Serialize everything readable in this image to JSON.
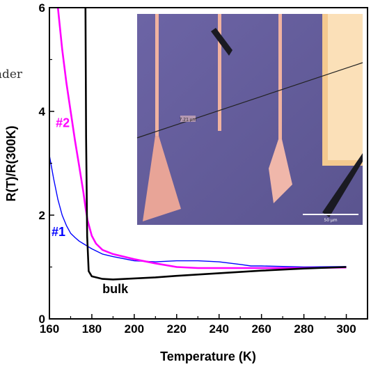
{
  "chart_data": {
    "type": "line",
    "xlabel": "Temperature (K)",
    "ylabel": "R(T)/R(300K)",
    "xlim": [
      160,
      310
    ],
    "ylim": [
      0,
      6
    ],
    "xticks": [
      160,
      180,
      200,
      220,
      240,
      260,
      280,
      300
    ],
    "yticks": [
      0,
      2,
      4,
      6
    ],
    "grid": false,
    "series": [
      {
        "name": "bulk",
        "color": "#000000",
        "x": [
          177,
          177.3,
          177.8,
          178.5,
          180,
          185,
          190,
          200,
          210,
          220,
          240,
          260,
          280,
          300
        ],
        "y": [
          6.0,
          3.5,
          1.6,
          0.92,
          0.82,
          0.77,
          0.76,
          0.78,
          0.8,
          0.83,
          0.88,
          0.93,
          0.97,
          1.0
        ]
      },
      {
        "name": "#2",
        "color": "#ff00ff",
        "x": [
          164,
          166,
          168,
          170,
          172,
          174,
          176,
          177,
          178,
          180,
          182,
          185,
          190,
          200,
          210,
          220,
          230,
          240,
          260,
          280,
          300
        ],
        "y": [
          6.0,
          5.2,
          4.55,
          4.0,
          3.45,
          2.95,
          2.45,
          2.15,
          1.9,
          1.6,
          1.45,
          1.33,
          1.25,
          1.15,
          1.07,
          1.0,
          0.98,
          0.98,
          0.98,
          0.98,
          0.99
        ]
      },
      {
        "name": "#1",
        "color": "#0000ff",
        "x": [
          160,
          162,
          164,
          166,
          168,
          170,
          172,
          174,
          176,
          178,
          180,
          185,
          190,
          200,
          210,
          220,
          230,
          240,
          250,
          255,
          260,
          280,
          300
        ],
        "y": [
          3.15,
          2.7,
          2.3,
          2.0,
          1.8,
          1.65,
          1.57,
          1.5,
          1.45,
          1.4,
          1.35,
          1.25,
          1.2,
          1.12,
          1.1,
          1.12,
          1.12,
          1.1,
          1.05,
          1.02,
          1.02,
          1.0,
          1.01
        ]
      }
    ],
    "annotations": [
      {
        "text": "#2",
        "color": "#ff00ff",
        "x": 163,
        "y": 3.7
      },
      {
        "text": "#1",
        "color": "#0000ff",
        "x": 161,
        "y": 1.6
      },
      {
        "text": "bulk",
        "color": "#000000",
        "x": 185,
        "y": 0.5
      }
    ]
  },
  "inset": {
    "label_small": "7.21 µm",
    "scalebar_label": "50 µm"
  },
  "fragment_text": "nder"
}
